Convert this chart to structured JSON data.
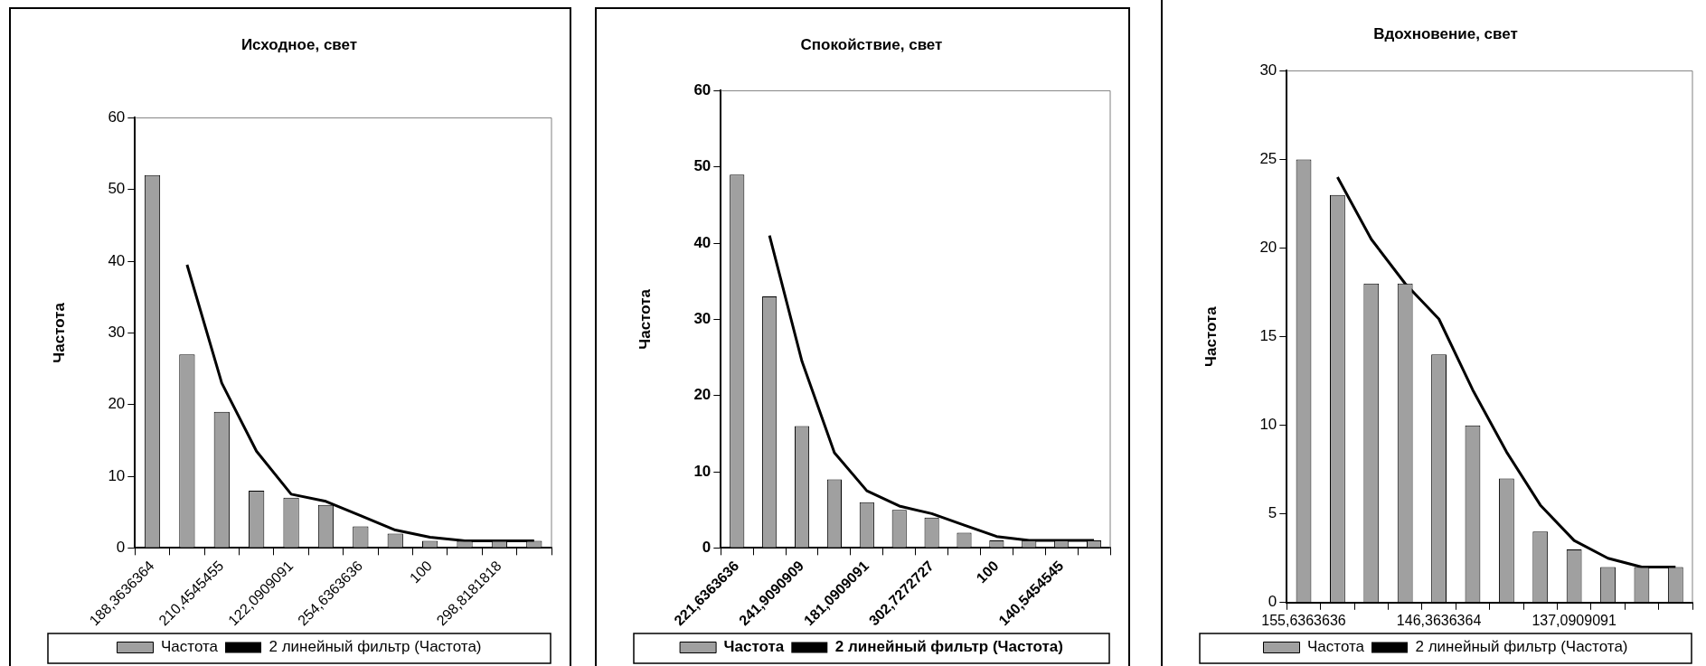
{
  "chart_data": [
    {
      "type": "bar",
      "title": "Исходное, свет",
      "ylabel": "Частота",
      "categories": [
        "188,3636364",
        null,
        "210,4545455",
        null,
        "122,0909091",
        null,
        "254,6363636",
        null,
        "100",
        null,
        "298,8181818",
        null
      ],
      "series": [
        {
          "name": "Частота",
          "color": "#a0a0a0",
          "values": [
            52,
            27,
            19,
            8,
            7,
            6,
            3,
            2,
            1,
            1,
            1,
            1
          ]
        },
        {
          "name": "2 линейный фильтр (Частота)",
          "type": "line",
          "color": "#000000",
          "values": [
            null,
            39.5,
            23,
            13.5,
            7.5,
            6.5,
            4.5,
            2.5,
            1.5,
            1,
            1,
            1
          ]
        }
      ],
      "ylim": [
        0,
        60
      ],
      "yticks": [
        0,
        10,
        20,
        30,
        40,
        50,
        60
      ],
      "grid": false,
      "legend": "bottom"
    },
    {
      "type": "bar",
      "title": "Спокойствие, свет",
      "ylabel": "Частота",
      "categories": [
        "221,6363636",
        null,
        "241,9090909",
        null,
        "181,0909091",
        null,
        "302,7272727",
        null,
        "100",
        null,
        "140,5454545",
        null
      ],
      "series": [
        {
          "name": "Частота",
          "color": "#a0a0a0",
          "values": [
            49,
            33,
            16,
            9,
            6,
            5,
            4,
            2,
            1,
            1,
            1,
            1
          ]
        },
        {
          "name": "2 линейный фильтр (Частота)",
          "type": "line",
          "color": "#000000",
          "values": [
            null,
            41,
            24.5,
            12.5,
            7.5,
            5.5,
            4.5,
            3,
            1.5,
            1,
            1,
            1
          ]
        }
      ],
      "ylim": [
        0,
        60
      ],
      "yticks": [
        0,
        10,
        20,
        30,
        40,
        50,
        60
      ],
      "grid": false,
      "legend": "bottom"
    },
    {
      "type": "bar",
      "title": "Вдохновение, свет",
      "ylabel": "Частота",
      "categories": [
        "155,6363636",
        null,
        null,
        null,
        "146,3636364",
        null,
        null,
        null,
        "137,0909091",
        null,
        null,
        null
      ],
      "series": [
        {
          "name": "Частота",
          "color": "#a0a0a0",
          "values": [
            25,
            23,
            18,
            18,
            14,
            10,
            7,
            4,
            3,
            2,
            2,
            2
          ]
        },
        {
          "name": "2 линейный фильтр (Частота)",
          "type": "line",
          "color": "#000000",
          "values": [
            null,
            24,
            20.5,
            18,
            16,
            12,
            8.5,
            5.5,
            3.5,
            2.5,
            2,
            2
          ]
        }
      ],
      "ylim": [
        0,
        30
      ],
      "yticks": [
        0,
        5,
        10,
        15,
        20,
        25,
        30
      ],
      "grid": false,
      "legend": "bottom"
    }
  ]
}
